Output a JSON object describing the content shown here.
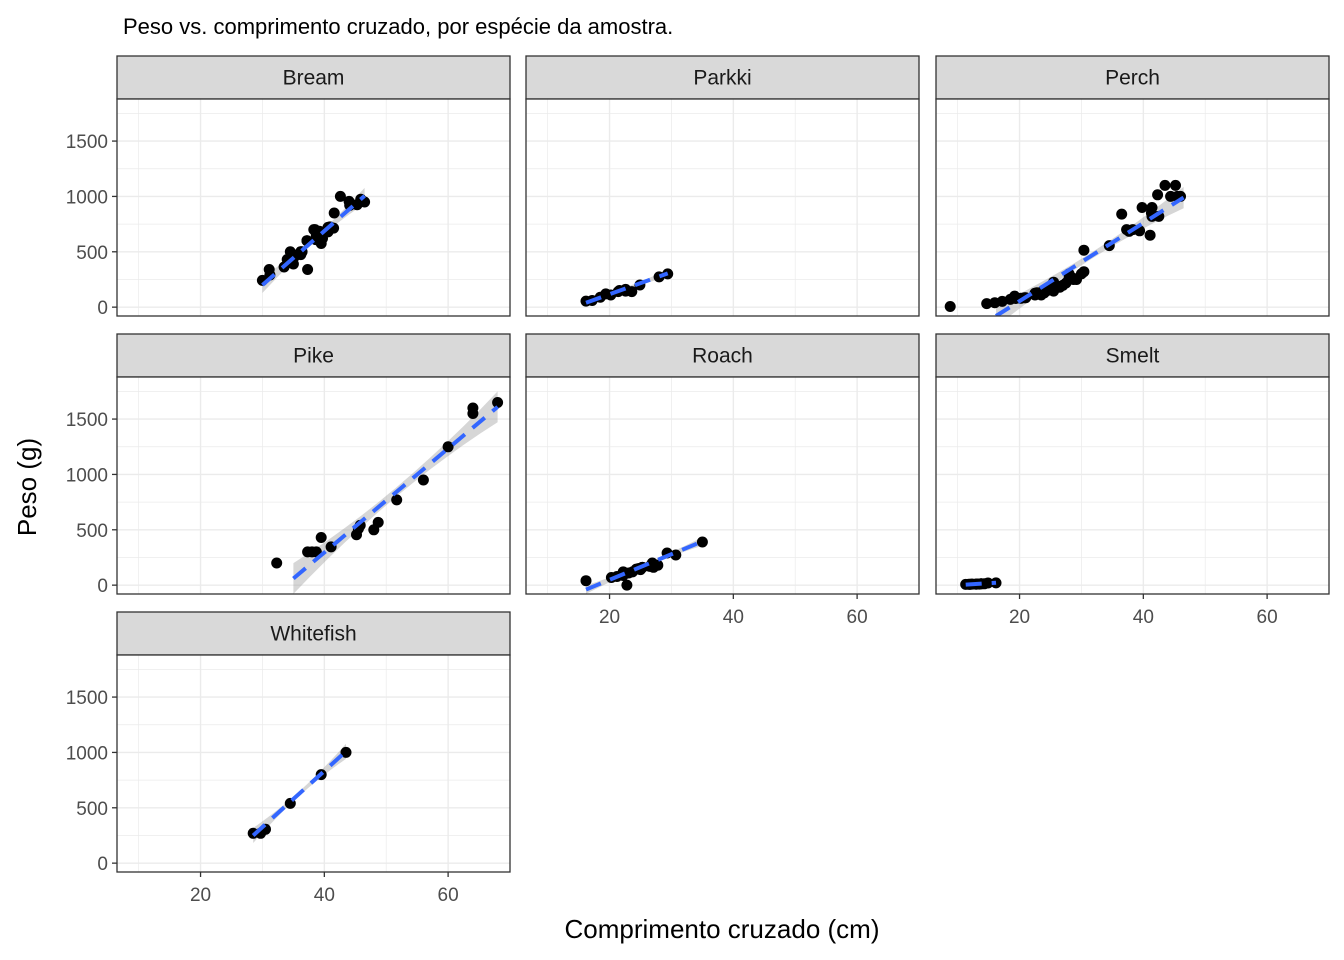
{
  "chart_data": {
    "type": "scatter",
    "title": "Peso vs. comprimento cruzado, por espécie da amostra.",
    "xlabel": "Comprimento cruzado (cm)",
    "ylabel": "Peso (g)",
    "xlim": [
      6.5,
      70
    ],
    "ylim": [
      -80,
      1880
    ],
    "x_ticks": [
      20,
      40,
      60
    ],
    "y_ticks": [
      0,
      500,
      1000,
      1500
    ],
    "grid": true,
    "colors": {
      "point": "#000000",
      "fit_line": "#3366FF",
      "ribbon": "#999999",
      "strip_fill": "#D9D9D9",
      "grid_major": "#EBEBEB",
      "panel_border": "#333333"
    },
    "facets": [
      {
        "name": "Bream",
        "points": [
          [
            30,
            242
          ],
          [
            31.2,
            290
          ],
          [
            31.1,
            340
          ],
          [
            33.5,
            363
          ],
          [
            34,
            430
          ],
          [
            34.7,
            450
          ],
          [
            34.5,
            500
          ],
          [
            35,
            390
          ],
          [
            35.1,
            450
          ],
          [
            36.2,
            500
          ],
          [
            36.2,
            475
          ],
          [
            36.2,
            500
          ],
          [
            36.4,
            500
          ],
          [
            37.3,
            340
          ],
          [
            37.2,
            600
          ],
          [
            37.2,
            600
          ],
          [
            38.3,
            700
          ],
          [
            38.5,
            700
          ],
          [
            38.6,
            610
          ],
          [
            38.7,
            650
          ],
          [
            39.5,
            575
          ],
          [
            39.2,
            685
          ],
          [
            39.7,
            620
          ],
          [
            40.6,
            680
          ],
          [
            40.5,
            700
          ],
          [
            40.9,
            725
          ],
          [
            40.6,
            720
          ],
          [
            41.5,
            714
          ],
          [
            41.6,
            850
          ],
          [
            42.6,
            1000
          ],
          [
            44.1,
            920
          ],
          [
            44,
            955
          ],
          [
            45.3,
            925
          ],
          [
            45.9,
            975
          ],
          [
            46.5,
            950
          ]
        ],
        "fit": [
          [
            30,
            200
          ],
          [
            46.5,
            1005
          ]
        ]
      },
      {
        "name": "Parkki",
        "points": [
          [
            16.2,
            55
          ],
          [
            17.2,
            60
          ],
          [
            18.5,
            90
          ],
          [
            19.4,
            120
          ],
          [
            20.2,
            110
          ],
          [
            21.6,
            150
          ],
          [
            21.4,
            140
          ],
          [
            22.6,
            145
          ],
          [
            22.6,
            160
          ],
          [
            23.6,
            140
          ],
          [
            24.9,
            200
          ],
          [
            28,
            273
          ],
          [
            29.4,
            300
          ]
        ],
        "fit": [
          [
            16.2,
            40
          ],
          [
            29.4,
            305
          ]
        ]
      },
      {
        "name": "Perch",
        "points": [
          [
            8.8,
            5.9
          ],
          [
            14.7,
            32
          ],
          [
            16,
            40
          ],
          [
            17.2,
            51.5
          ],
          [
            18.5,
            70
          ],
          [
            19.2,
            100
          ],
          [
            19.4,
            78
          ],
          [
            20.2,
            80
          ],
          [
            20.8,
            85
          ],
          [
            21,
            85
          ],
          [
            22.5,
            110
          ],
          [
            22.5,
            115
          ],
          [
            22.5,
            125
          ],
          [
            22.8,
            130
          ],
          [
            23.5,
            120
          ],
          [
            23.5,
            120
          ],
          [
            23.5,
            130
          ],
          [
            23.5,
            135
          ],
          [
            23.5,
            110
          ],
          [
            24,
            130
          ],
          [
            24,
            150
          ],
          [
            24.2,
            145
          ],
          [
            24.5,
            150
          ],
          [
            25,
            170
          ],
          [
            25.5,
            225
          ],
          [
            25.5,
            145
          ],
          [
            26.2,
            188
          ],
          [
            26.5,
            180
          ],
          [
            27,
            197
          ],
          [
            27.5,
            218
          ],
          [
            28,
            300
          ],
          [
            28.7,
            260
          ],
          [
            28,
            265
          ],
          [
            28.7,
            250
          ],
          [
            29.2,
            250
          ],
          [
            30,
            300
          ],
          [
            30.4,
            320
          ],
          [
            30.4,
            514
          ],
          [
            34.5,
            556
          ],
          [
            36.5,
            840
          ],
          [
            37.7,
            685
          ],
          [
            37.3,
            700
          ],
          [
            38.3,
            700
          ],
          [
            39.4,
            690
          ],
          [
            39.8,
            900
          ],
          [
            41.1,
            650
          ],
          [
            41.4,
            820
          ],
          [
            41.3,
            850
          ],
          [
            41.4,
            900
          ],
          [
            42.3,
            1015
          ],
          [
            42.5,
            820
          ],
          [
            43.5,
            1100
          ],
          [
            44.4,
            1000
          ],
          [
            45.2,
            1100
          ],
          [
            45.5,
            1000
          ],
          [
            46,
            1000
          ]
        ],
        "fit": [
          [
            16.2,
            -80
          ],
          [
            46.5,
            990
          ]
        ]
      },
      {
        "name": "Pike",
        "points": [
          [
            32.3,
            200
          ],
          [
            37.3,
            300
          ],
          [
            38,
            300
          ],
          [
            38.7,
            300
          ],
          [
            39.5,
            430
          ],
          [
            41.1,
            345
          ],
          [
            45.2,
            456
          ],
          [
            45.5,
            510
          ],
          [
            45.8,
            540
          ],
          [
            48,
            500
          ],
          [
            48.7,
            567
          ],
          [
            51.7,
            770
          ],
          [
            56,
            950
          ],
          [
            60,
            1250
          ],
          [
            64,
            1600
          ],
          [
            64,
            1550
          ],
          [
            68,
            1650
          ]
        ],
        "fit": [
          [
            35,
            60
          ],
          [
            68,
            1610
          ]
        ]
      },
      {
        "name": "Roach",
        "points": [
          [
            16.2,
            40
          ],
          [
            20.3,
            69
          ],
          [
            21.2,
            78
          ],
          [
            22.2,
            87
          ],
          [
            22.2,
            120
          ],
          [
            22.8,
            0
          ],
          [
            23.1,
            110
          ],
          [
            23.7,
            120
          ],
          [
            24.7,
            150
          ],
          [
            24.3,
            145
          ],
          [
            25.3,
            160
          ],
          [
            25,
            140
          ],
          [
            25.3,
            160
          ],
          [
            26.5,
            169
          ],
          [
            27.1,
            161
          ],
          [
            26.9,
            200
          ],
          [
            27.8,
            180
          ],
          [
            29.3,
            290
          ],
          [
            30.7,
            272
          ],
          [
            35,
            390
          ]
        ],
        "fit": [
          [
            16.2,
            -40
          ],
          [
            35,
            395
          ]
        ]
      },
      {
        "name": "Smelt",
        "points": [
          [
            11.3,
            6.7
          ],
          [
            11.8,
            7.5
          ],
          [
            12,
            7
          ],
          [
            12.2,
            9.7
          ],
          [
            12.4,
            9.8
          ],
          [
            13,
            8.7
          ],
          [
            13,
            10
          ],
          [
            13.2,
            9.9
          ],
          [
            13.5,
            9.8
          ],
          [
            13.8,
            12.2
          ],
          [
            13.8,
            13.4
          ],
          [
            14.3,
            12.2
          ],
          [
            14.9,
            19.7
          ],
          [
            16.2,
            19.9
          ]
        ],
        "fit": [
          [
            11.3,
            5
          ],
          [
            16.2,
            22
          ]
        ]
      },
      {
        "name": "Whitefish",
        "points": [
          [
            28.5,
            270
          ],
          [
            29.7,
            270
          ],
          [
            30.5,
            306
          ],
          [
            34.5,
            540
          ],
          [
            39.5,
            800
          ],
          [
            43.5,
            1000
          ]
        ],
        "fit": [
          [
            28.5,
            250
          ],
          [
            43.5,
            1010
          ]
        ]
      }
    ]
  }
}
